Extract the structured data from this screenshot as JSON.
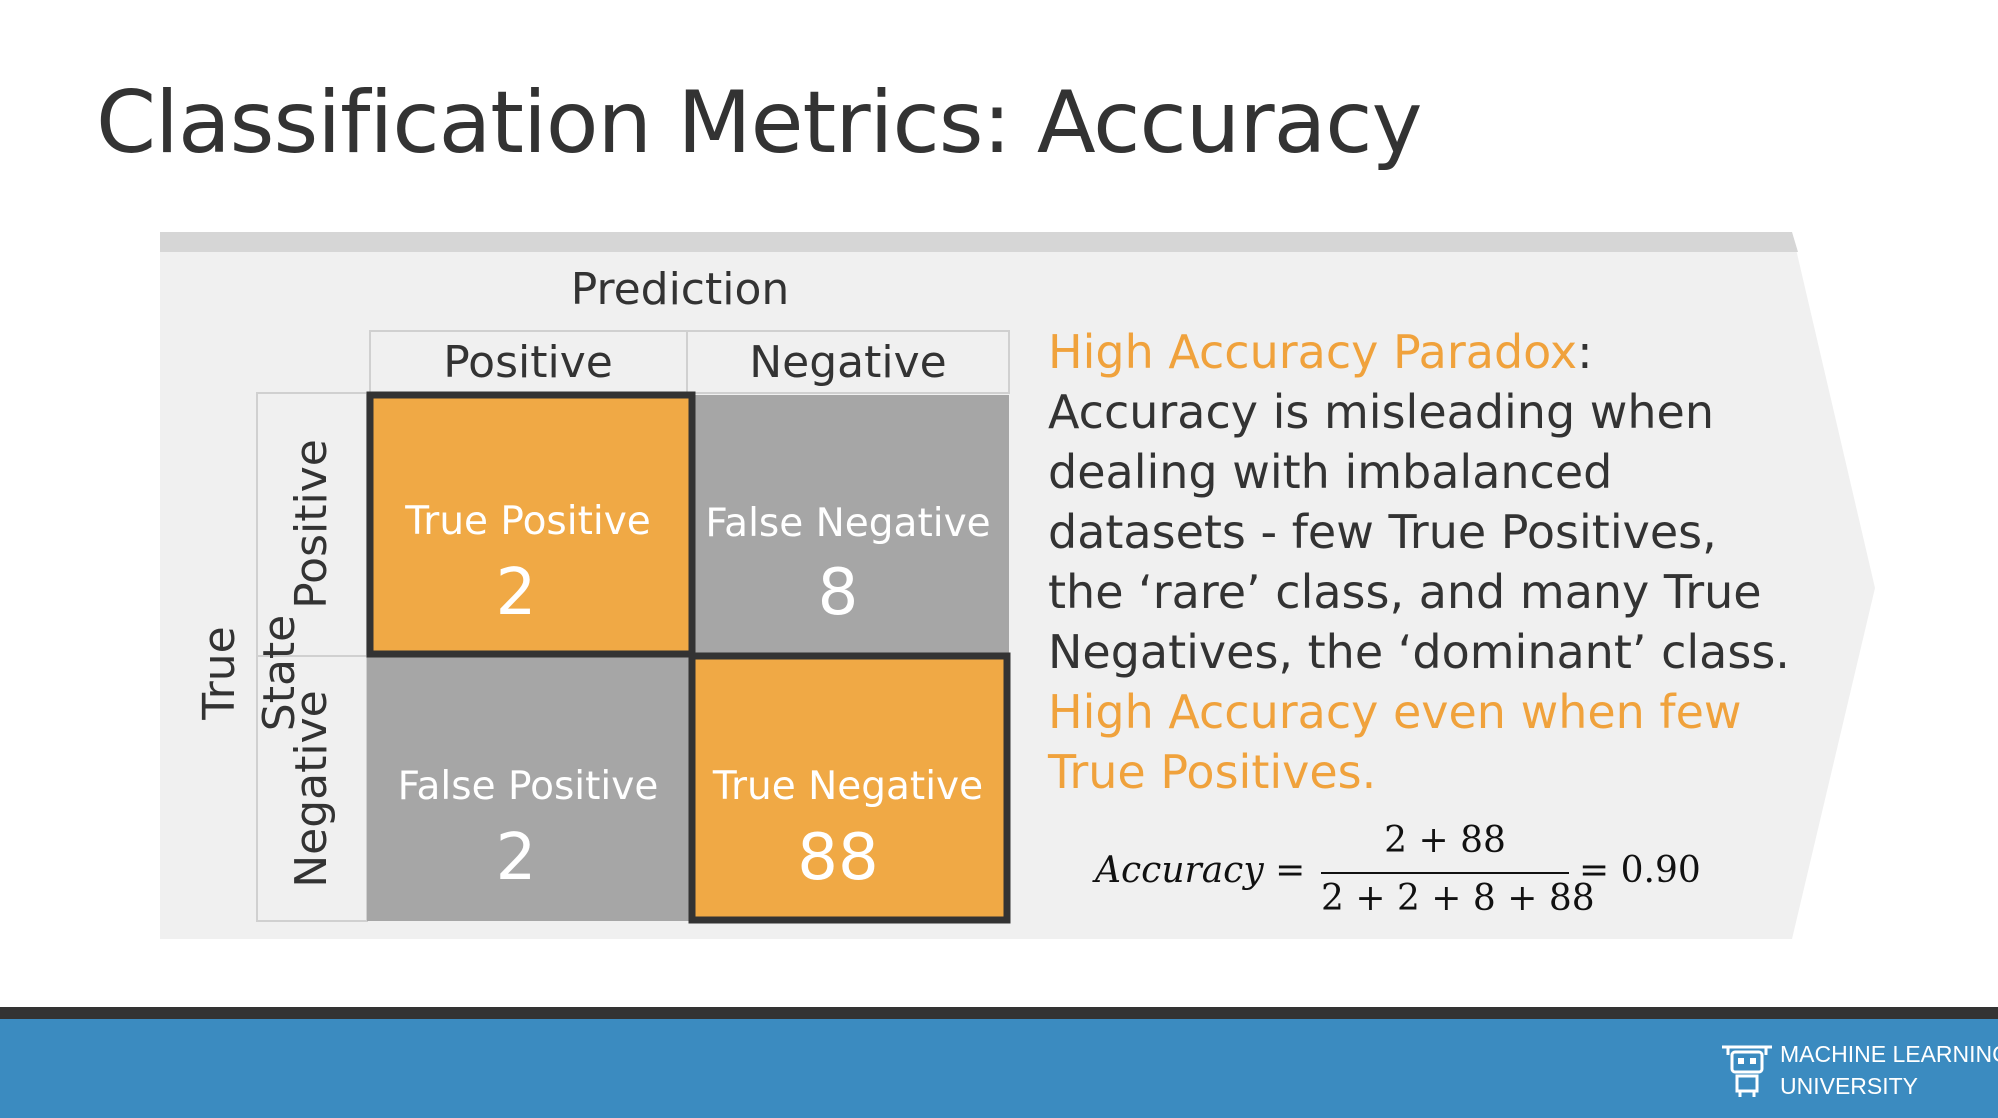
{
  "slide": {
    "title": "Classification Metrics: Accuracy"
  },
  "matrix": {
    "prediction_title": "Prediction",
    "true_state_title": "True State",
    "columns": [
      "Positive",
      "Negative"
    ],
    "rows": [
      "Positive",
      "Negative"
    ],
    "cells": {
      "tp": {
        "label": "True Positive",
        "value": "2"
      },
      "fn": {
        "label": "False Negative",
        "value": "8"
      },
      "fp": {
        "label": "False Positive",
        "value": "2"
      },
      "tn": {
        "label": "True Negative",
        "value": "88"
      }
    },
    "colors": {
      "highlight": "#f0a945",
      "neutral": "#a6a6a6",
      "border": "#333333"
    }
  },
  "description": {
    "highlight_1": "High Accuracy Paradox",
    "text_1": ": Accuracy is misleading when dealing with imbalanced datasets - few True Positives, the ‘rare’ class, and many True Negatives, the ‘dominant’ class. ",
    "highlight_2": "High Accuracy even when few True Positives.",
    "accent_color": "#f0a23c"
  },
  "formula": {
    "lhs": "Accuracy =",
    "numerator": "2 + 88",
    "denominator": "2 + 2 + 8 + 88",
    "rhs": "= 0.90"
  },
  "footer": {
    "logo_line_1": "MACHINE LEARNING",
    "logo_line_2": "UNIVERSITY",
    "logo_icon": "robot-icon",
    "bar_color": "#3b8bc0"
  }
}
